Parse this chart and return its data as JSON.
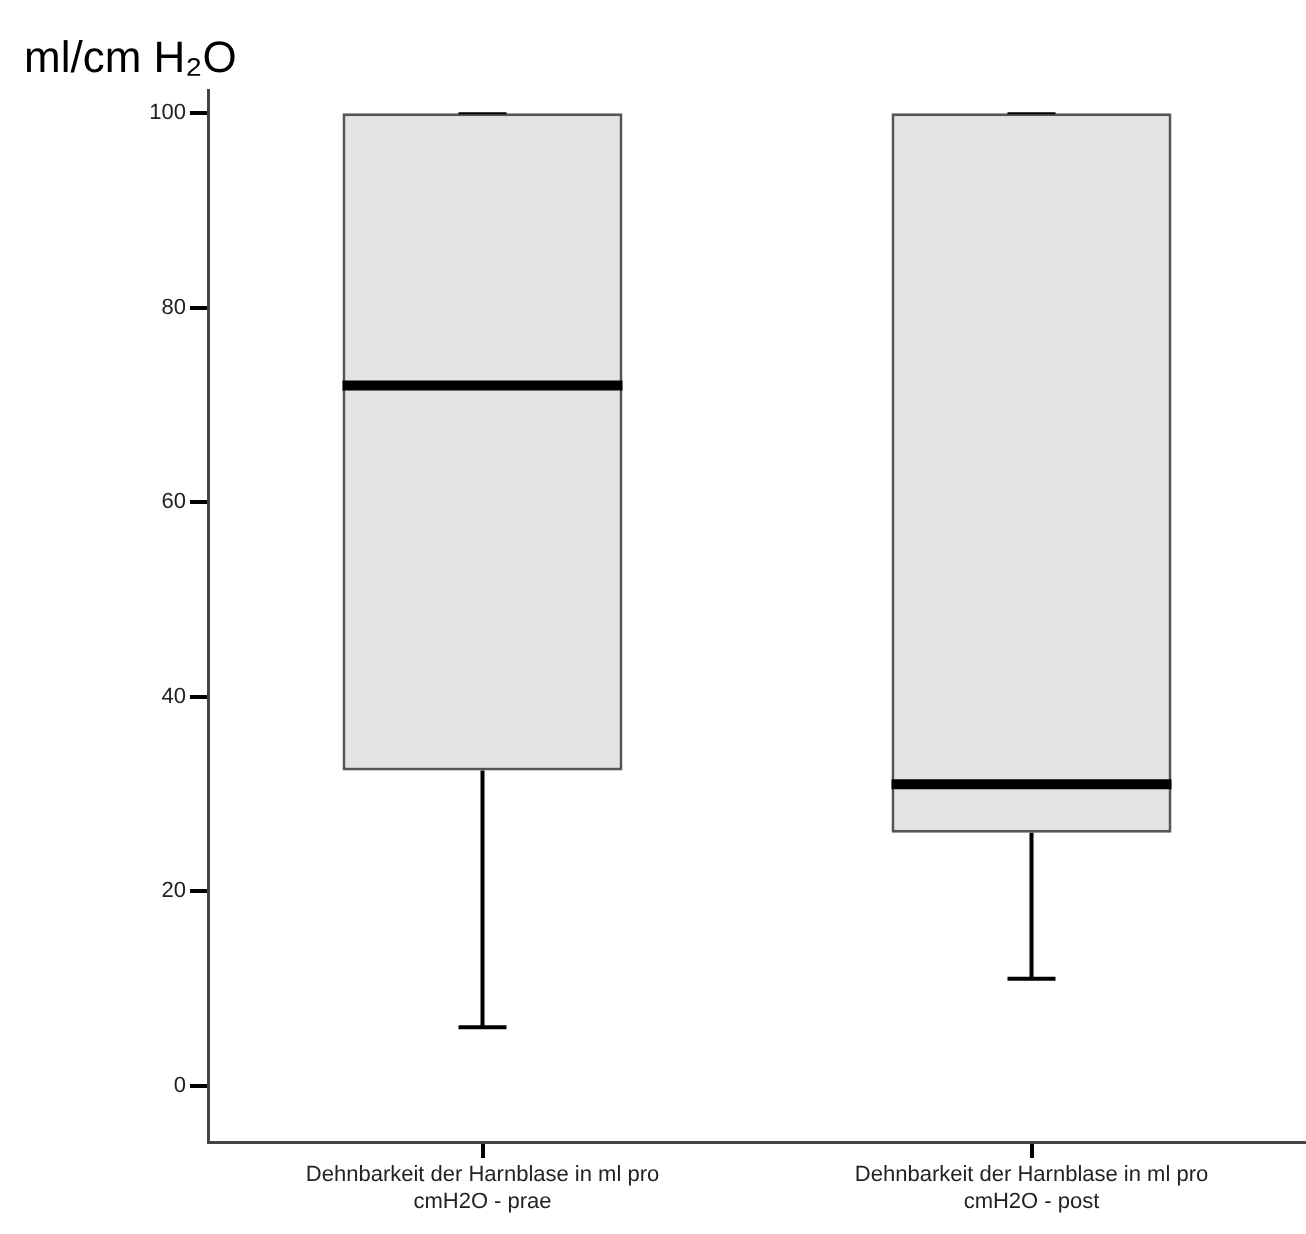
{
  "chart_data": {
    "type": "box",
    "ylabel": "ml/cm H₂O",
    "categories": [
      "Dehnbarkeit der Harnblase in ml pro cmH2O - prae",
      "Dehnbarkeit der Harnblase in ml pro cmH2O - post"
    ],
    "boxes": [
      {
        "low": 6,
        "q1": 32.4,
        "median": 72,
        "q3": 100,
        "high": 100
      },
      {
        "low": 11,
        "q1": 26,
        "median": 31,
        "q3": 100,
        "high": 100
      }
    ],
    "ylim": [
      -5.8,
      102.4
    ],
    "yticks": [
      0,
      20,
      40,
      60,
      80,
      100
    ]
  }
}
